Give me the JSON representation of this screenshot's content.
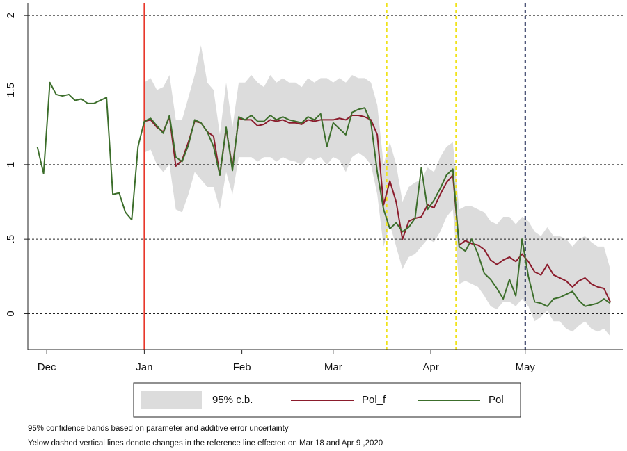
{
  "chart_data": {
    "type": "line",
    "xlim": [
      -37,
      152
    ],
    "ylim": [
      -0.24,
      2.08
    ],
    "xticks": [
      {
        "value": -31,
        "label": "Dec"
      },
      {
        "value": 0,
        "label": "Jan"
      },
      {
        "value": 31,
        "label": "Feb"
      },
      {
        "value": 60,
        "label": "Mar"
      },
      {
        "value": 91,
        "label": "Apr"
      },
      {
        "value": 121,
        "label": "May"
      }
    ],
    "yticks": [
      0,
      {
        "value": 0.5,
        "label": ".5"
      },
      1,
      1.5,
      2
    ],
    "grid": true,
    "x": [
      -34,
      -32,
      -30,
      -28,
      -26,
      -24,
      -22,
      -20,
      -18,
      -16,
      -14,
      -12,
      -10,
      -8,
      -6,
      -4,
      -2,
      0,
      2,
      4,
      6,
      8,
      10,
      12,
      14,
      16,
      18,
      20,
      22,
      24,
      26,
      28,
      30,
      32,
      34,
      36,
      38,
      40,
      42,
      44,
      46,
      48,
      50,
      52,
      54,
      56,
      58,
      60,
      62,
      64,
      66,
      68,
      70,
      72,
      74,
      76,
      78,
      80,
      82,
      84,
      86,
      88,
      90,
      92,
      94,
      96,
      98,
      100,
      102,
      104,
      106,
      108,
      110,
      112,
      114,
      116,
      118,
      120,
      122,
      124,
      126,
      128,
      130,
      132,
      134,
      136,
      138,
      140,
      142,
      144,
      146,
      148
    ],
    "band": {
      "name": "95% c.b.",
      "color": "#dcdcdc",
      "lower": [
        null,
        null,
        null,
        null,
        null,
        null,
        null,
        null,
        null,
        null,
        null,
        null,
        null,
        null,
        null,
        null,
        null,
        1.08,
        1.1,
        1.0,
        0.95,
        1.0,
        0.7,
        0.68,
        0.8,
        0.95,
        0.9,
        0.85,
        0.85,
        0.7,
        0.95,
        0.8,
        1.05,
        1.05,
        1.05,
        1.02,
        1.05,
        1.05,
        1.02,
        1.05,
        1.03,
        1.02,
        1.0,
        1.05,
        1.03,
        1.05,
        1.0,
        1.05,
        1.03,
        0.95,
        1.05,
        1.08,
        1.05,
        1.0,
        0.8,
        0.45,
        0.6,
        0.45,
        0.3,
        0.38,
        0.4,
        0.45,
        0.5,
        0.48,
        0.55,
        0.65,
        0.7,
        0.2,
        0.22,
        0.2,
        0.18,
        0.12,
        0.05,
        0.03,
        0.08,
        0.08,
        0.05,
        0.1,
        0.05,
        -0.05,
        -0.02,
        0.02,
        -0.05,
        -0.05,
        -0.1,
        -0.12,
        -0.08,
        -0.05,
        -0.1,
        -0.12,
        -0.1,
        -0.15
      ],
      "upper": [
        null,
        null,
        null,
        null,
        null,
        null,
        null,
        null,
        null,
        null,
        null,
        null,
        null,
        null,
        null,
        null,
        null,
        1.55,
        1.58,
        1.5,
        1.52,
        1.6,
        1.3,
        1.3,
        1.45,
        1.6,
        1.8,
        1.55,
        1.5,
        1.2,
        1.55,
        1.25,
        1.55,
        1.55,
        1.6,
        1.55,
        1.52,
        1.6,
        1.55,
        1.58,
        1.55,
        1.55,
        1.52,
        1.58,
        1.55,
        1.58,
        1.58,
        1.55,
        1.58,
        1.55,
        1.6,
        1.58,
        1.58,
        1.55,
        1.4,
        1.0,
        1.15,
        1.0,
        0.75,
        0.85,
        0.88,
        0.9,
        0.98,
        0.95,
        1.05,
        1.12,
        1.15,
        0.7,
        0.72,
        0.72,
        0.7,
        0.68,
        0.62,
        0.6,
        0.65,
        0.65,
        0.6,
        0.65,
        0.62,
        0.55,
        0.52,
        0.58,
        0.52,
        0.52,
        0.5,
        0.45,
        0.5,
        0.52,
        0.48,
        0.45,
        0.45,
        0.3
      ]
    },
    "series": [
      {
        "name": "Pol_f",
        "color": "#8b1c2c",
        "values": [
          null,
          null,
          null,
          null,
          null,
          null,
          null,
          null,
          null,
          null,
          null,
          null,
          null,
          null,
          null,
          null,
          null,
          1.29,
          1.3,
          1.25,
          1.22,
          1.32,
          0.99,
          1.03,
          1.15,
          1.29,
          1.28,
          1.22,
          1.19,
          0.93,
          1.24,
          0.98,
          1.31,
          1.3,
          1.3,
          1.26,
          1.27,
          1.3,
          1.29,
          1.3,
          1.28,
          1.28,
          1.27,
          1.3,
          1.29,
          1.3,
          1.3,
          1.3,
          1.31,
          1.3,
          1.33,
          1.33,
          1.32,
          1.3,
          1.2,
          0.73,
          0.89,
          0.75,
          0.5,
          0.62,
          0.64,
          0.65,
          0.73,
          0.71,
          0.8,
          0.88,
          0.93,
          0.46,
          0.49,
          0.47,
          0.46,
          0.43,
          0.36,
          0.33,
          0.36,
          0.38,
          0.35,
          0.4,
          0.35,
          0.28,
          0.26,
          0.33,
          0.26,
          0.24,
          0.22,
          0.18,
          0.22,
          0.24,
          0.2,
          0.18,
          0.17,
          0.08
        ]
      },
      {
        "name": "Pol",
        "color": "#3c6e2b",
        "values": [
          1.12,
          0.94,
          1.55,
          1.47,
          1.46,
          1.47,
          1.43,
          1.44,
          1.41,
          1.41,
          1.43,
          1.45,
          0.8,
          0.81,
          0.68,
          0.63,
          1.12,
          1.29,
          1.31,
          1.26,
          1.21,
          1.33,
          1.05,
          1.02,
          1.13,
          1.3,
          1.28,
          1.22,
          1.12,
          0.93,
          1.25,
          0.96,
          1.32,
          1.3,
          1.33,
          1.29,
          1.29,
          1.33,
          1.3,
          1.32,
          1.3,
          1.29,
          1.28,
          1.32,
          1.3,
          1.34,
          1.12,
          1.28,
          1.24,
          1.2,
          1.35,
          1.37,
          1.38,
          1.28,
          0.95,
          0.7,
          0.57,
          0.61,
          0.55,
          0.58,
          0.64,
          0.98,
          0.7,
          0.76,
          0.84,
          0.93,
          0.97,
          0.45,
          0.42,
          0.5,
          0.4,
          0.27,
          0.23,
          0.17,
          0.1,
          0.23,
          0.12,
          0.5,
          0.25,
          0.08,
          0.07,
          0.05,
          0.1,
          0.11,
          0.13,
          0.15,
          0.09,
          0.05,
          0.06,
          0.07,
          0.1,
          0.07
        ]
      }
    ],
    "vlines": [
      {
        "x": 0,
        "color": "#e8382b",
        "style": "solid"
      },
      {
        "x": 77,
        "color": "#f0e31a",
        "style": "dashed"
      },
      {
        "x": 99,
        "color": "#f0e31a",
        "style": "dashed"
      },
      {
        "x": 121,
        "color": "#1a2550",
        "style": "dashed"
      }
    ],
    "notes": [
      "95% confidence bands based on parameter and additive error uncertainty",
      "Yelow dashed vertical lines denote changes in the reference line effected on Mar 18 and Apr 9 ,2020"
    ]
  }
}
